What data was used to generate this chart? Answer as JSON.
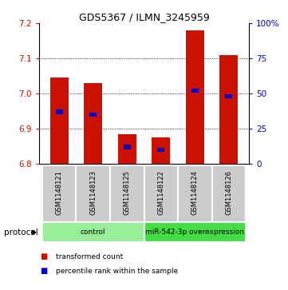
{
  "title": "GDS5367 / ILMN_3245959",
  "samples": [
    "GSM1148121",
    "GSM1148123",
    "GSM1148125",
    "GSM1148122",
    "GSM1148124",
    "GSM1148126"
  ],
  "transformed_counts": [
    7.045,
    7.03,
    6.885,
    6.875,
    7.18,
    7.11
  ],
  "percentile_ranks": [
    37,
    35,
    12,
    10,
    52,
    48
  ],
  "ylim_left": [
    6.8,
    7.2
  ],
  "yticks_left": [
    6.8,
    6.9,
    7.0,
    7.1,
    7.2
  ],
  "yticks_right": [
    0,
    25,
    50,
    75,
    100
  ],
  "bar_color": "#cc1100",
  "percentile_color": "#0000cc",
  "bar_bottom": 6.8,
  "protocol_groups": [
    {
      "label": "control",
      "indices": [
        0,
        1,
        2
      ],
      "color": "#99ee99"
    },
    {
      "label": "miR-542-3p overexpression",
      "indices": [
        3,
        4,
        5
      ],
      "color": "#44dd44"
    }
  ],
  "legend_items": [
    {
      "label": "transformed count",
      "color": "#cc1100"
    },
    {
      "label": "percentile rank within the sample",
      "color": "#0000cc"
    }
  ],
  "background_color": "#ffffff",
  "bar_width": 0.55,
  "percentile_bar_width": 0.22,
  "sample_box_color": "#cccccc",
  "grid_color": "#000000",
  "grid_linestyle": "dotted",
  "grid_linewidth": 0.6
}
